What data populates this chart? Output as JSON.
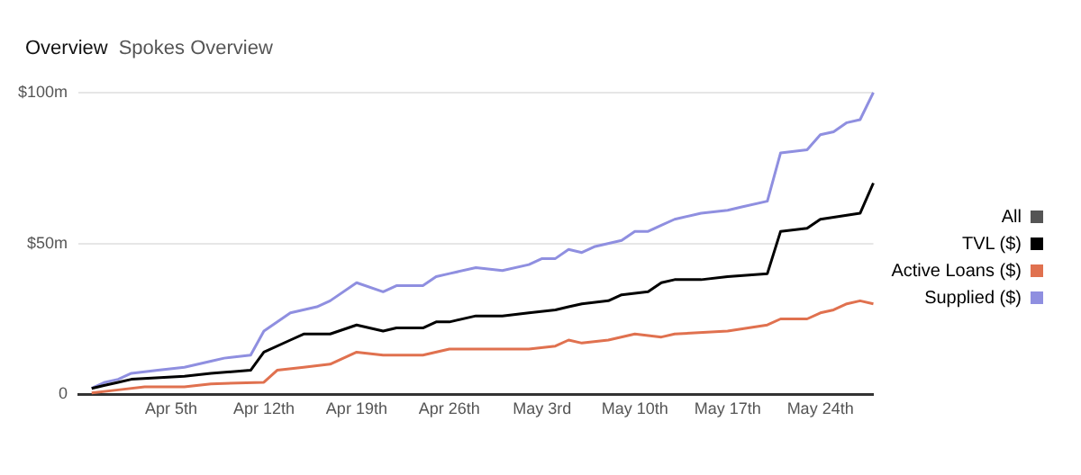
{
  "chart_data": {
    "type": "line",
    "title": "Overview",
    "subtitle": "Spokes Overview",
    "xlim": [
      "--03-29",
      "--05-28"
    ],
    "xticks": [
      {
        "value": "--04-05",
        "label": "Apr 5th"
      },
      {
        "value": "--04-12",
        "label": "Apr 12th"
      },
      {
        "value": "--04-19",
        "label": "Apr 19th"
      },
      {
        "value": "--04-26",
        "label": "Apr 26th"
      },
      {
        "value": "--05-03",
        "label": "May 3rd"
      },
      {
        "value": "--05-10",
        "label": "May 10th"
      },
      {
        "value": "--05-17",
        "label": "May 17th"
      },
      {
        "value": "--05-24",
        "label": "May 24th"
      }
    ],
    "ylim": [
      0,
      100
    ],
    "yticks": [
      0,
      {
        "value": 50,
        "label": "$50m"
      },
      {
        "value": 100,
        "label": "$100m"
      }
    ],
    "grid": "y",
    "legend": "right",
    "marker": "none",
    "line_style": "solid",
    "series": [
      {
        "name": "All",
        "color": "#555555"
      },
      {
        "name": "TVL ($)",
        "color": "#000000",
        "x": [
          "--03-30",
          "--03-31",
          "--04-01",
          "--04-02",
          "--04-06",
          "--04-08",
          "--04-11",
          "--04-12",
          "--04-14",
          "--04-15",
          "--04-17",
          "--04-19",
          "--04-21",
          "--04-22",
          "--04-24",
          "--04-25",
          "--04-26",
          "--04-28",
          "--04-30",
          "--05-02",
          "--05-04",
          "--05-05",
          "--05-06",
          "--05-08",
          "--05-09",
          "--05-11",
          "--05-12",
          "--05-13",
          "--05-15",
          "--05-17",
          "--05-20",
          "--05-21",
          "--05-23",
          "--05-24",
          "--05-27",
          "--05-28"
        ],
        "values": [
          2,
          3,
          4,
          5,
          6,
          7,
          8,
          14,
          18,
          20,
          20,
          23,
          21,
          22,
          22,
          24,
          24,
          26,
          26,
          27,
          28,
          29,
          30,
          31,
          33,
          34,
          37,
          38,
          38,
          39,
          40,
          54,
          55,
          58,
          60,
          70
        ]
      },
      {
        "name": "Active Loans ($)",
        "color": "#e0714f",
        "x": [
          "--03-30",
          "--04-01",
          "--04-03",
          "--04-06",
          "--04-08",
          "--04-12",
          "--04-13",
          "--04-15",
          "--04-17",
          "--04-19",
          "--04-21",
          "--04-24",
          "--04-26",
          "--04-28",
          "--05-02",
          "--05-04",
          "--05-05",
          "--05-06",
          "--05-08",
          "--05-10",
          "--05-12",
          "--05-13",
          "--05-17",
          "--05-20",
          "--05-21",
          "--05-23",
          "--05-24",
          "--05-25",
          "--05-26",
          "--05-27",
          "--05-28"
        ],
        "values": [
          0.5,
          1.5,
          2.5,
          2.5,
          3.5,
          4,
          8,
          9,
          10,
          14,
          13,
          13,
          15,
          15,
          15,
          16,
          18,
          17,
          18,
          20,
          19,
          20,
          21,
          23,
          25,
          25,
          27,
          28,
          30,
          31,
          30
        ]
      },
      {
        "name": "Supplied ($)",
        "color": "#8f8fe0",
        "x": [
          "--03-30",
          "--03-31",
          "--04-01",
          "--04-02",
          "--04-04",
          "--04-06",
          "--04-08",
          "--04-09",
          "--04-11",
          "--04-12",
          "--04-14",
          "--04-16",
          "--04-17",
          "--04-19",
          "--04-21",
          "--04-22",
          "--04-24",
          "--04-25",
          "--04-26",
          "--04-28",
          "--04-30",
          "--05-02",
          "--05-03",
          "--05-04",
          "--05-05",
          "--05-06",
          "--05-07",
          "--05-09",
          "--05-10",
          "--05-11",
          "--05-12",
          "--05-13",
          "--05-15",
          "--05-17",
          "--05-18",
          "--05-20",
          "--05-21",
          "--05-23",
          "--05-24",
          "--05-25",
          "--05-26",
          "--05-27",
          "--05-28"
        ],
        "values": [
          2,
          4,
          5,
          7,
          8,
          9,
          11,
          12,
          13,
          21,
          27,
          29,
          31,
          37,
          34,
          36,
          36,
          39,
          40,
          42,
          41,
          43,
          45,
          45,
          48,
          47,
          49,
          51,
          54,
          54,
          56,
          58,
          60,
          61,
          62,
          64,
          80,
          81,
          86,
          87,
          90,
          91,
          100
        ]
      }
    ]
  }
}
